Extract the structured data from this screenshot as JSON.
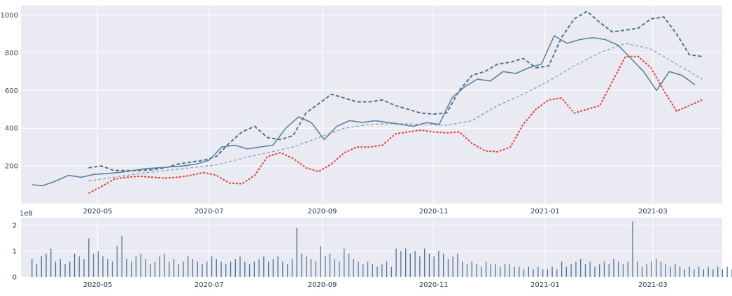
{
  "chart_data": [
    {
      "type": "line",
      "title": "",
      "xlabel": "",
      "ylabel": "",
      "x_tick_labels": [
        "2020-05",
        "2020-07",
        "2020-09",
        "2020-11",
        "2021-01",
        "2021-03"
      ],
      "y_ticks": [
        200,
        400,
        600,
        800,
        1000
      ],
      "ylim": [
        0,
        1050
      ],
      "grid": true,
      "colors": {
        "close": "#5b84a3",
        "upper_band": "#4f7491",
        "moving_average": "#8aa4bd",
        "lower_band": "#e8453c",
        "background": "#eaeaf2"
      },
      "series": [
        {
          "key": "close",
          "style": "solid",
          "x": [
            "2020-03-26",
            "2020-04-01",
            "2020-04-08",
            "2020-04-15",
            "2020-04-22",
            "2020-04-29",
            "2020-05-06",
            "2020-05-13",
            "2020-05-20",
            "2020-05-27",
            "2020-06-03",
            "2020-06-10",
            "2020-06-17",
            "2020-06-24",
            "2020-07-01",
            "2020-07-08",
            "2020-07-15",
            "2020-07-22",
            "2020-07-29",
            "2020-08-05",
            "2020-08-12",
            "2020-08-19",
            "2020-08-26",
            "2020-09-02",
            "2020-09-09",
            "2020-09-16",
            "2020-09-23",
            "2020-09-30",
            "2020-10-07",
            "2020-10-14",
            "2020-10-21",
            "2020-10-28",
            "2020-11-04",
            "2020-11-11",
            "2020-11-18",
            "2020-11-25",
            "2020-12-02",
            "2020-12-09",
            "2020-12-16",
            "2020-12-23",
            "2020-12-30",
            "2021-01-06",
            "2021-01-13",
            "2021-01-20",
            "2021-01-27",
            "2021-02-03",
            "2021-02-10",
            "2021-02-17",
            "2021-02-24",
            "2021-03-03",
            "2021-03-10",
            "2021-03-17",
            "2021-03-24"
          ],
          "values": [
            100,
            95,
            120,
            150,
            140,
            155,
            160,
            165,
            175,
            185,
            190,
            195,
            200,
            210,
            230,
            300,
            310,
            290,
            300,
            310,
            400,
            460,
            430,
            340,
            410,
            440,
            430,
            440,
            430,
            420,
            410,
            430,
            420,
            560,
            620,
            660,
            650,
            700,
            690,
            720,
            740,
            890,
            850,
            870,
            880,
            870,
            840,
            770,
            700,
            600,
            700,
            680,
            630
          ]
        },
        {
          "key": "upper_band",
          "style": "dashed",
          "x": [
            "2020-04-26",
            "2020-05-03",
            "2020-05-10",
            "2020-05-17",
            "2020-05-24",
            "2020-05-31",
            "2020-06-07",
            "2020-06-14",
            "2020-06-21",
            "2020-06-28",
            "2020-07-05",
            "2020-07-12",
            "2020-07-19",
            "2020-07-26",
            "2020-08-02",
            "2020-08-09",
            "2020-08-16",
            "2020-08-23",
            "2020-08-30",
            "2020-09-06",
            "2020-09-13",
            "2020-09-20",
            "2020-09-27",
            "2020-10-04",
            "2020-10-11",
            "2020-10-18",
            "2020-10-25",
            "2020-11-01",
            "2020-11-08",
            "2020-11-15",
            "2020-11-22",
            "2020-11-29",
            "2020-12-06",
            "2020-12-13",
            "2020-12-20",
            "2020-12-27",
            "2021-01-03",
            "2021-01-10",
            "2021-01-17",
            "2021-01-24",
            "2021-01-31",
            "2021-02-07",
            "2021-02-14",
            "2021-02-21",
            "2021-02-28",
            "2021-03-07",
            "2021-03-14",
            "2021-03-21",
            "2021-03-28"
          ],
          "values": [
            190,
            200,
            175,
            175,
            175,
            180,
            190,
            210,
            220,
            230,
            250,
            320,
            380,
            410,
            350,
            340,
            360,
            480,
            530,
            580,
            560,
            540,
            540,
            550,
            520,
            500,
            480,
            475,
            480,
            600,
            680,
            700,
            740,
            750,
            770,
            720,
            730,
            880,
            980,
            1020,
            960,
            910,
            920,
            930,
            980,
            990,
            900,
            790,
            780
          ]
        },
        {
          "key": "moving_average",
          "style": "dashed",
          "x": [
            "2020-04-26",
            "2020-05-10",
            "2020-05-24",
            "2020-06-07",
            "2020-06-21",
            "2020-07-05",
            "2020-07-19",
            "2020-08-02",
            "2020-08-16",
            "2020-08-30",
            "2020-09-13",
            "2020-09-27",
            "2020-10-11",
            "2020-10-25",
            "2020-11-08",
            "2020-11-22",
            "2020-12-06",
            "2020-12-20",
            "2021-01-03",
            "2021-01-17",
            "2021-01-31",
            "2021-02-14",
            "2021-02-28",
            "2021-03-14",
            "2021-03-28"
          ],
          "values": [
            120,
            140,
            160,
            175,
            190,
            205,
            240,
            270,
            300,
            350,
            400,
            420,
            425,
            420,
            415,
            440,
            520,
            580,
            650,
            730,
            800,
            850,
            820,
            740,
            660
          ]
        },
        {
          "key": "lower_band",
          "style": "dashed",
          "x": [
            "2020-04-26",
            "2020-05-03",
            "2020-05-10",
            "2020-05-17",
            "2020-05-24",
            "2020-05-31",
            "2020-06-07",
            "2020-06-14",
            "2020-06-21",
            "2020-06-28",
            "2020-07-05",
            "2020-07-12",
            "2020-07-19",
            "2020-07-26",
            "2020-08-02",
            "2020-08-09",
            "2020-08-16",
            "2020-08-23",
            "2020-08-30",
            "2020-09-06",
            "2020-09-13",
            "2020-09-20",
            "2020-09-27",
            "2020-10-04",
            "2020-10-11",
            "2020-10-18",
            "2020-10-25",
            "2020-11-01",
            "2020-11-08",
            "2020-11-15",
            "2020-11-22",
            "2020-11-29",
            "2020-12-06",
            "2020-12-13",
            "2020-12-20",
            "2020-12-27",
            "2021-01-03",
            "2021-01-10",
            "2021-01-17",
            "2021-01-24",
            "2021-01-31",
            "2021-02-07",
            "2021-02-14",
            "2021-02-21",
            "2021-02-28",
            "2021-03-07",
            "2021-03-14",
            "2021-03-21",
            "2021-03-28"
          ],
          "values": [
            55,
            90,
            130,
            140,
            145,
            140,
            135,
            140,
            150,
            165,
            150,
            110,
            105,
            150,
            250,
            270,
            240,
            190,
            170,
            210,
            270,
            300,
            300,
            310,
            370,
            380,
            390,
            380,
            375,
            380,
            320,
            280,
            275,
            300,
            420,
            500,
            550,
            560,
            480,
            500,
            520,
            650,
            780,
            780,
            720,
            600,
            490,
            520,
            550
          ]
        }
      ]
    },
    {
      "type": "bar",
      "title": "",
      "xlabel": "",
      "ylabel": "",
      "scale_label": "1e8",
      "x_tick_labels": [
        "2020-05",
        "2020-07",
        "2020-09",
        "2020-11",
        "2021-01",
        "2021-03"
      ],
      "y_ticks": [
        0,
        1,
        2
      ],
      "ylim": [
        0,
        2.3
      ],
      "grid": true,
      "colors": {
        "bars": "#4f7491"
      },
      "series": [
        {
          "name": "",
          "x_start": "2020-03-26",
          "step_days": 1.4,
          "values": [
            0.7,
            0.5,
            0.8,
            0.9,
            1.1,
            0.6,
            0.7,
            0.5,
            0.6,
            0.9,
            0.8,
            0.7,
            1.5,
            0.9,
            1.0,
            0.8,
            0.7,
            0.6,
            1.2,
            1.6,
            0.7,
            0.6,
            0.8,
            0.9,
            0.7,
            0.5,
            0.6,
            0.8,
            0.9,
            0.6,
            0.7,
            0.5,
            0.6,
            0.8,
            0.7,
            0.6,
            0.5,
            0.6,
            0.8,
            0.7,
            0.6,
            0.5,
            0.6,
            0.7,
            0.8,
            0.6,
            0.5,
            0.6,
            0.7,
            0.8,
            0.6,
            0.7,
            0.8,
            0.6,
            0.5,
            0.7,
            1.9,
            0.9,
            0.8,
            0.7,
            0.6,
            1.2,
            0.8,
            0.9,
            0.7,
            0.6,
            1.1,
            0.9,
            0.7,
            0.6,
            0.5,
            0.6,
            0.5,
            0.4,
            0.5,
            0.6,
            0.4,
            1.1,
            1.0,
            1.1,
            0.9,
            1.0,
            0.8,
            1.1,
            0.9,
            0.8,
            1.0,
            0.9,
            0.7,
            0.8,
            0.9,
            0.6,
            0.5,
            0.6,
            0.5,
            0.4,
            0.6,
            0.5,
            0.5,
            0.4,
            0.5,
            0.5,
            0.4,
            0.4,
            0.3,
            0.4,
            0.3,
            0.4,
            0.3,
            0.3,
            0.4,
            0.3,
            0.6,
            0.4,
            0.5,
            0.6,
            0.7,
            0.5,
            0.6,
            0.4,
            0.5,
            0.6,
            0.5,
            0.7,
            0.6,
            0.5,
            0.6,
            2.15,
            0.6,
            0.4,
            0.5,
            0.6,
            0.7,
            0.6,
            0.5,
            0.4,
            0.5,
            0.4,
            0.3,
            0.4,
            0.3,
            0.4,
            0.3,
            0.4,
            0.3,
            0.4,
            0.3,
            0.4,
            0.3,
            0.4,
            0.5,
            0.4,
            0.6,
            0.7,
            0.8,
            0.6,
            0.9,
            0.7,
            0.5,
            0.4,
            0.5,
            0.4,
            0.3,
            0.4,
            0.3,
            0.4
          ]
        }
      ]
    }
  ]
}
